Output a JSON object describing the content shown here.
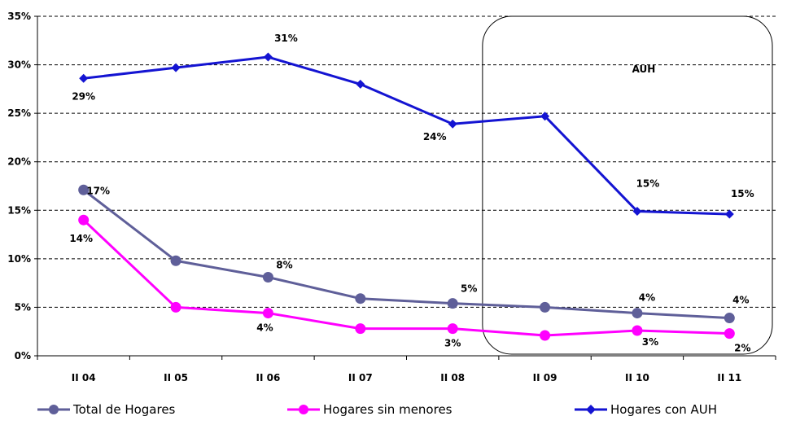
{
  "chart_data": {
    "type": "line",
    "categories": [
      "II 04",
      "II 05",
      "II 06",
      "II 07",
      "II 08",
      "II 09",
      "II 10",
      "II 11"
    ],
    "ylim": [
      0,
      35
    ],
    "yticks": [
      "0%",
      "5%",
      "10%",
      "15%",
      "20%",
      "25%",
      "30%",
      "35%"
    ],
    "grid": true,
    "legend_position": "bottom",
    "series": [
      {
        "name": "Total de Hogares",
        "color": "#5f5f99",
        "marker": "circle",
        "values": [
          17.1,
          9.8,
          8.1,
          5.9,
          5.4,
          5.0,
          4.4,
          3.9
        ],
        "labels": [
          "17%",
          "",
          "8%",
          "",
          "5%",
          "",
          "4%",
          "4%"
        ]
      },
      {
        "name": "Hogares sin menores",
        "color": "#ff00ff",
        "marker": "circle",
        "values": [
          14.0,
          5.0,
          4.4,
          2.8,
          2.8,
          2.1,
          2.6,
          2.3
        ],
        "labels": [
          "14%",
          "",
          "4%",
          "",
          "3%",
          "",
          "3%",
          "2%"
        ]
      },
      {
        "name": "Hogares con AUH",
        "color": "#1414d2",
        "marker": "diamond",
        "values": [
          28.6,
          29.7,
          30.8,
          28.0,
          23.9,
          24.7,
          14.9,
          14.6
        ],
        "labels": [
          "29%",
          "",
          "31%",
          "",
          "24%",
          "",
          "15%",
          "15%"
        ]
      }
    ],
    "annotation": {
      "text": "AUH",
      "from_category": "II 09",
      "to_category": "II 11"
    }
  }
}
